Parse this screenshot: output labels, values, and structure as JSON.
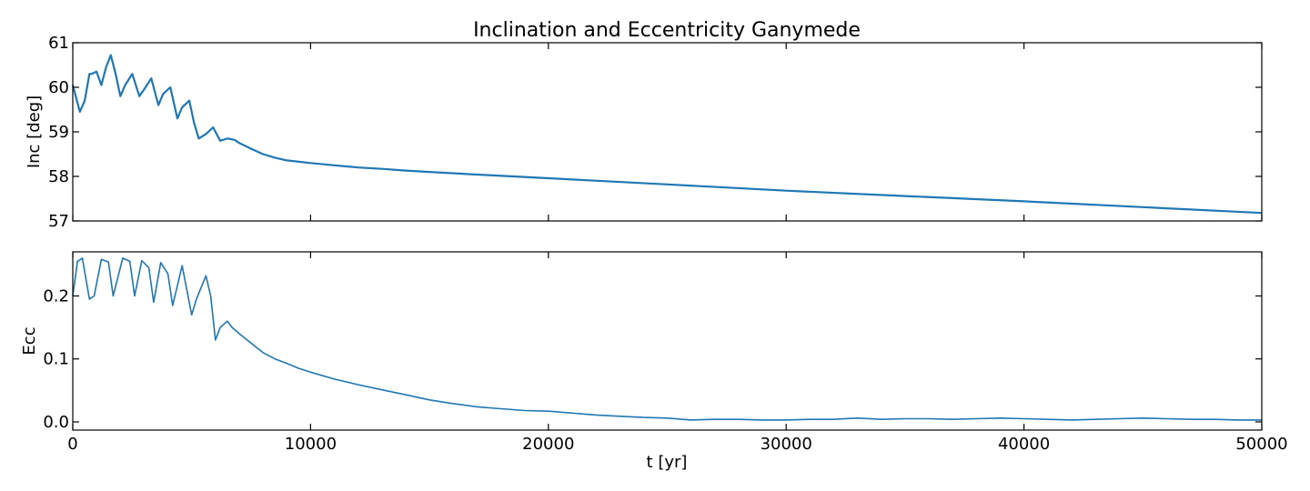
{
  "title": "Inclination and Eccentricity Ganymede",
  "colors": {
    "line": "#1f77b4",
    "axes": "#000000",
    "background": "#ffffff"
  },
  "chart_data": [
    {
      "type": "line",
      "id": "inc",
      "title": "Inclination and Eccentricity Ganymede",
      "xlabel": "",
      "ylabel": "Inc [deg]",
      "xlim": [
        0,
        50000
      ],
      "ylim": [
        57,
        61
      ],
      "xticks": [
        0,
        10000,
        20000,
        30000,
        40000,
        50000
      ],
      "xtick_labels_visible": false,
      "yticks": [
        57,
        58,
        59,
        60,
        61
      ],
      "ytick_labels": [
        "57",
        "58",
        "59",
        "60",
        "61"
      ],
      "grid": false,
      "series": [
        {
          "x": [
            0,
            300,
            500,
            700,
            800,
            1000,
            1200,
            1400,
            1600,
            1800,
            2000,
            2200,
            2500,
            2800,
            3000,
            3300,
            3600,
            3800,
            4100,
            4400,
            4600,
            4900,
            5100,
            5300,
            5600,
            5900,
            6200,
            6500,
            6800,
            7000,
            7500,
            8000,
            8500,
            9000,
            10000,
            11000,
            12000,
            13000,
            14000,
            15000,
            17000,
            20000,
            25000,
            30000,
            35000,
            40000,
            45000,
            50000
          ],
          "y": [
            60.05,
            59.45,
            59.7,
            60.3,
            60.3,
            60.35,
            60.05,
            60.45,
            60.72,
            60.3,
            59.8,
            60.05,
            60.3,
            59.8,
            59.95,
            60.2,
            59.6,
            59.85,
            60.0,
            59.3,
            59.55,
            59.7,
            59.2,
            58.85,
            58.95,
            59.1,
            58.8,
            58.85,
            58.82,
            58.75,
            58.62,
            58.5,
            58.42,
            58.36,
            58.3,
            58.25,
            58.2,
            58.17,
            58.13,
            58.1,
            58.04,
            57.96,
            57.82,
            57.68,
            57.56,
            57.44,
            57.31,
            57.18
          ]
        }
      ]
    },
    {
      "type": "line",
      "id": "ecc",
      "title": "",
      "xlabel": "t [yr]",
      "ylabel": "Ecc",
      "xlim": [
        0,
        50000
      ],
      "ylim": [
        -0.013,
        0.27
      ],
      "xticks": [
        0,
        10000,
        20000,
        30000,
        40000,
        50000
      ],
      "xtick_labels": [
        "0",
        "10000",
        "20000",
        "30000",
        "40000",
        "50000"
      ],
      "yticks": [
        0.0,
        0.1,
        0.2
      ],
      "ytick_labels": [
        "0.0",
        "0.1",
        "0.2"
      ],
      "grid": false,
      "series": [
        {
          "x": [
            0,
            200,
            400,
            700,
            900,
            1200,
            1500,
            1700,
            2100,
            2400,
            2600,
            2900,
            3200,
            3400,
            3700,
            4000,
            4200,
            4600,
            5000,
            5200,
            5600,
            5800,
            6000,
            6200,
            6500,
            6700,
            7000,
            7500,
            8000,
            8500,
            9000,
            9500,
            10000,
            11000,
            12000,
            13000,
            14000,
            15000,
            16000,
            17000,
            18000,
            19000,
            20000,
            21000,
            22000,
            23000,
            24000,
            25000,
            26000,
            27000,
            28000,
            29000,
            30000,
            31000,
            32000,
            33000,
            34000,
            35000,
            36000,
            37000,
            38000,
            39000,
            40000,
            41000,
            42000,
            43000,
            44000,
            45000,
            46000,
            47000,
            48000,
            49000,
            50000
          ],
          "y": [
            0.2,
            0.255,
            0.26,
            0.195,
            0.2,
            0.258,
            0.254,
            0.2,
            0.26,
            0.255,
            0.2,
            0.256,
            0.245,
            0.19,
            0.253,
            0.235,
            0.185,
            0.248,
            0.17,
            0.195,
            0.232,
            0.2,
            0.13,
            0.15,
            0.16,
            0.15,
            0.14,
            0.125,
            0.11,
            0.1,
            0.093,
            0.085,
            0.079,
            0.068,
            0.059,
            0.051,
            0.043,
            0.035,
            0.029,
            0.024,
            0.021,
            0.018,
            0.017,
            0.014,
            0.011,
            0.009,
            0.007,
            0.006,
            0.003,
            0.004,
            0.004,
            0.003,
            0.003,
            0.004,
            0.004,
            0.006,
            0.004,
            0.005,
            0.005,
            0.004,
            0.005,
            0.006,
            0.005,
            0.004,
            0.003,
            0.004,
            0.005,
            0.006,
            0.005,
            0.004,
            0.004,
            0.003,
            0.003
          ]
        }
      ]
    }
  ]
}
